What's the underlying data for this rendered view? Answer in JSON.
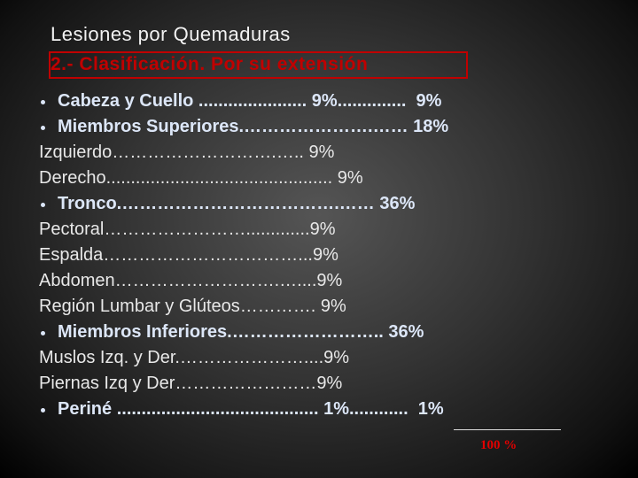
{
  "header": {
    "title": "Lesiones por Quemaduras",
    "subtitle": "2.- Clasificación. Por su extensión"
  },
  "items": [
    {
      "text": "Cabeza y Cuello ...................... 9%..............  9%",
      "bullet": true
    },
    {
      "text": "Miembros Superiores.………………….…… 18%",
      "bullet": true
    },
    {
      "text": "Izquierdo……………………….….. 9%",
      "bullet": false
    },
    {
      "text": "Derecho.............................................. 9%",
      "bullet": false
    },
    {
      "text": "Tronco.……………………………….…… 36%",
      "bullet": true
    },
    {
      "text": "Pectoral…………………….............9%",
      "bullet": false
    },
    {
      "text": "Espalda……………………………...9%",
      "bullet": false
    },
    {
      "text": "Abdomen……………………….…....9%",
      "bullet": false
    },
    {
      "text": "Región Lumbar y Glúteos…………. 9%",
      "bullet": false
    },
    {
      "text": "Miembros Inferiores.…………………….. 36%",
      "bullet": true
    },
    {
      "text": "Muslos Izq. y Der.…………………....9%",
      "bullet": false
    },
    {
      "text": "Piernas Izq y Der……………………9%",
      "bullet": false
    },
    {
      "text": "Periné ......................................... 1%............  1%",
      "bullet": true
    }
  ],
  "total": "100 %"
}
